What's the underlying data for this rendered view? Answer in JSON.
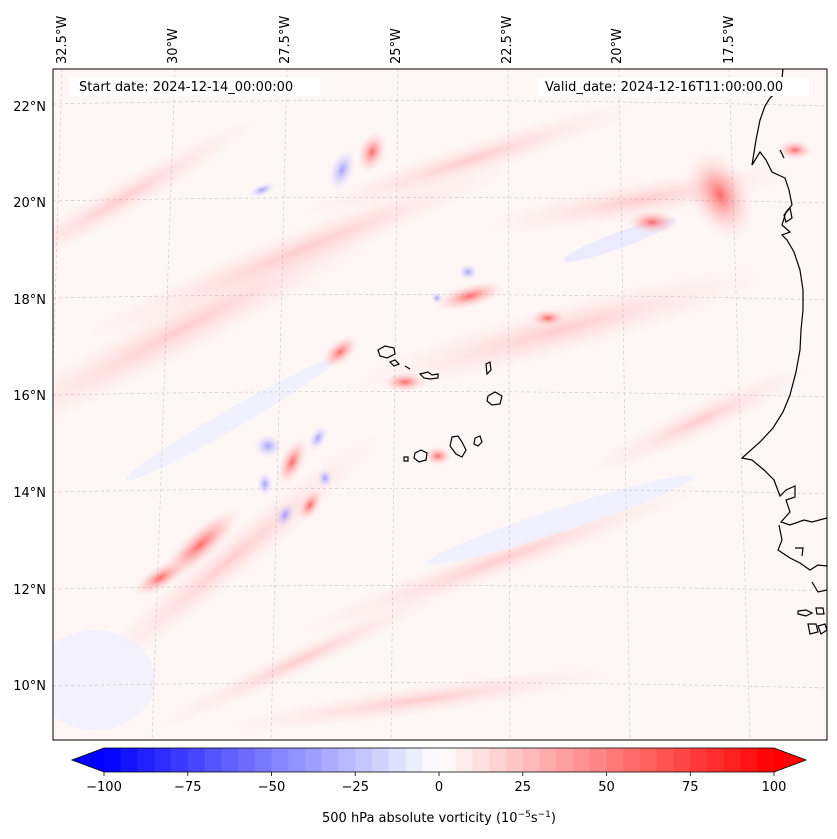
{
  "header": {
    "start_date": "Start date: 2024-12-14_00:00:00",
    "valid_date": "Valid_date: 2024-12-16T11:00:00.00"
  },
  "map": {
    "longitude_labels": [
      "32.5°W",
      "30°W",
      "27.5°W",
      "25°W",
      "22.5°W",
      "20°W",
      "17.5°W"
    ],
    "latitude_labels": [
      "22°N",
      "20°N",
      "18°N",
      "16°N",
      "14°N",
      "12°N",
      "10°N"
    ],
    "gridlines": true,
    "coastline_color": "#000000"
  },
  "colorbar": {
    "label_prefix": "500 hPa absolute vorticity (10",
    "label_exp1": "−5",
    "label_mid": "s",
    "label_exp2": "−1",
    "label_suffix": ")",
    "ticks": [
      "−100",
      "−75",
      "−50",
      "−25",
      "0",
      "25",
      "50",
      "75",
      "100"
    ],
    "min_color": "#0000ff",
    "mid_color": "#ffffff",
    "max_color": "#ff0000"
  }
}
